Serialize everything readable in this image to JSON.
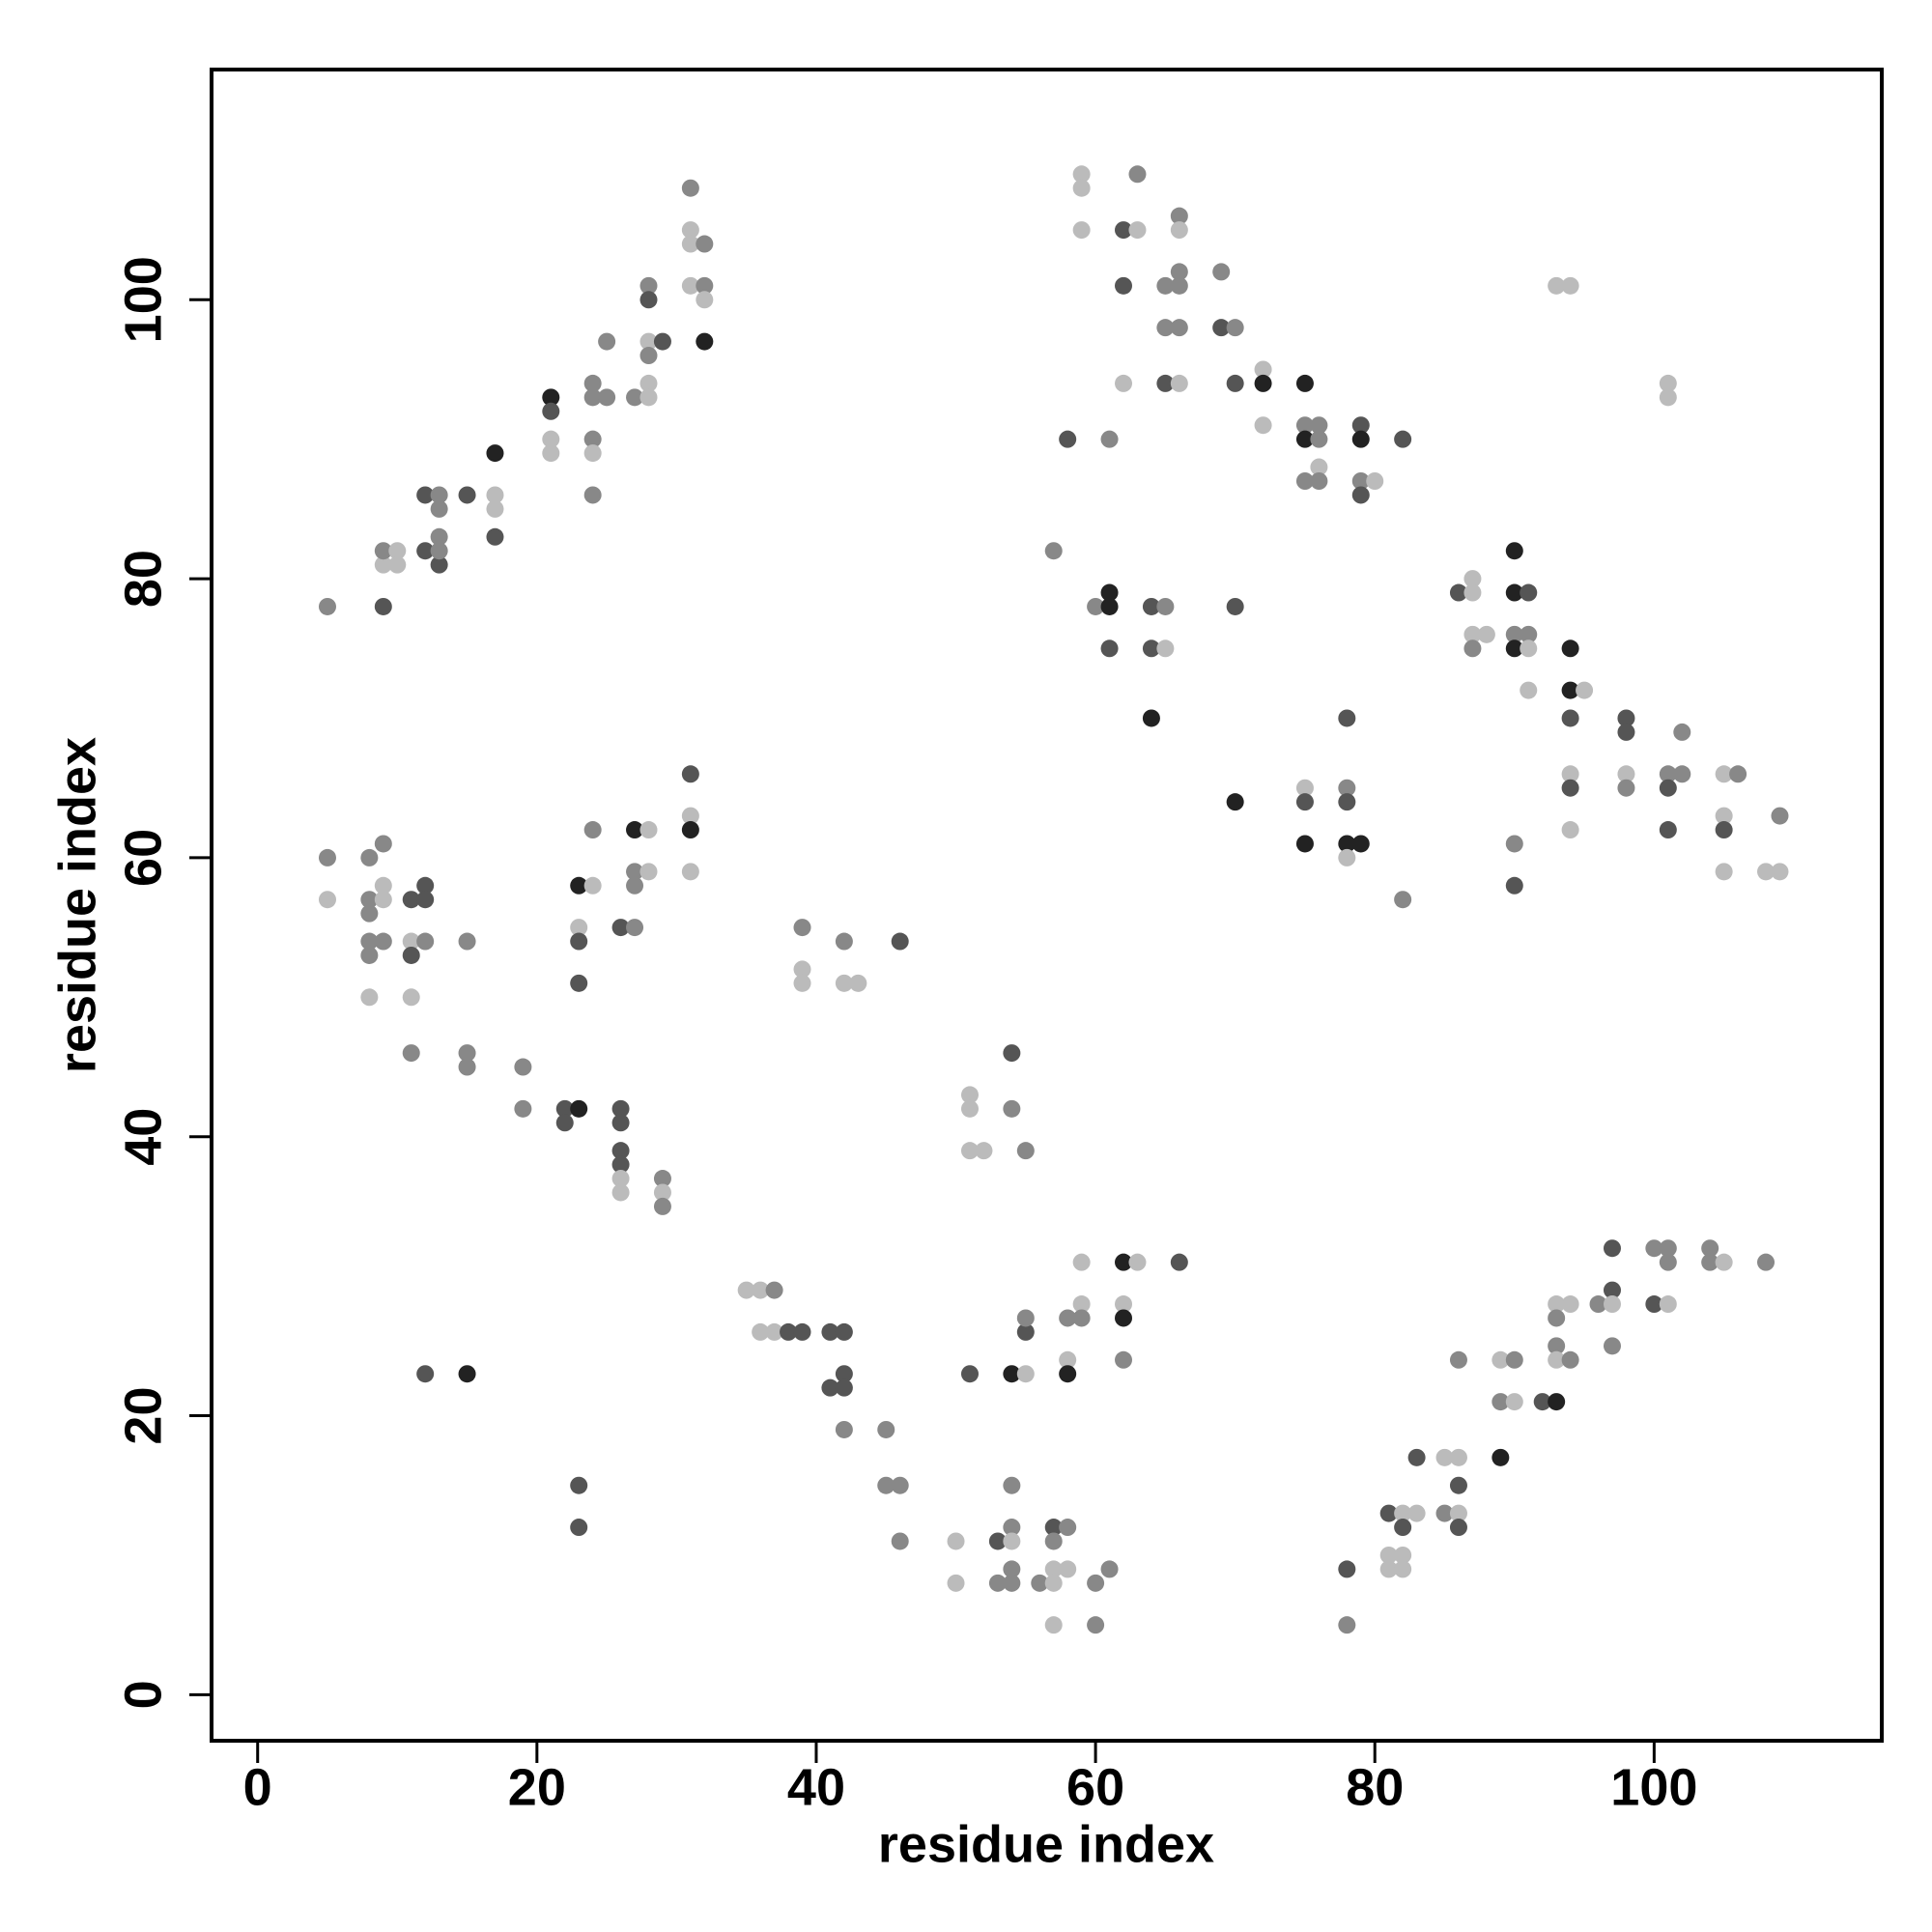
{
  "chart_data": {
    "type": "scatter",
    "x_label": "residue index",
    "y_label": "residue index",
    "xlim": [
      -3.3,
      116.3
    ],
    "ylim": [
      -3.3,
      116.5
    ],
    "xticks": [
      0,
      20,
      40,
      60,
      80,
      100
    ],
    "yticks": [
      0,
      20,
      40,
      60,
      80,
      100
    ],
    "x": [
      5,
      9,
      9,
      9,
      10,
      10,
      12,
      12,
      13,
      13,
      13,
      13,
      13,
      15,
      17,
      17,
      17,
      17,
      21,
      21,
      21,
      21,
      24,
      24,
      24,
      24,
      24,
      25,
      25,
      27,
      28,
      28,
      28,
      28,
      28,
      28,
      29,
      31,
      31,
      31,
      31,
      32,
      32,
      32,
      32,
      5,
      5,
      8,
      8,
      8,
      8,
      8,
      8,
      9,
      9,
      9,
      9,
      11,
      11,
      11,
      11,
      12,
      12,
      12,
      15,
      11,
      15,
      15,
      19,
      19,
      22,
      22,
      23,
      23,
      23,
      23,
      23,
      24,
      24,
      26,
      26,
      26,
      26,
      26,
      26,
      26,
      27,
      27,
      27,
      27,
      28,
      28,
      29,
      29,
      29,
      31,
      31,
      31,
      31,
      39,
      39,
      39,
      42,
      42,
      43,
      46,
      12,
      15,
      23,
      23,
      35,
      36,
      37,
      36,
      37,
      38,
      39,
      41,
      42,
      42,
      41,
      42,
      42,
      45,
      45,
      46,
      46,
      50,
      50,
      51,
      51,
      51,
      52,
      54,
      54,
      55,
      51,
      54,
      55,
      55,
      55,
      53,
      53,
      54,
      54,
      54,
      54,
      54,
      56,
      57,
      57,
      57,
      57,
      57,
      58,
      58,
      58,
      58,
      58,
      59,
      59,
      59,
      60,
      60,
      61,
      62,
      62,
      62,
      62,
      63,
      66,
      59,
      59,
      59,
      63,
      62,
      63,
      62,
      62,
      65,
      65,
      65,
      66,
      66,
      66,
      66,
      66,
      66,
      69,
      69,
      70,
      70,
      72,
      72,
      72,
      75,
      75,
      75,
      75,
      76,
      76,
      76,
      76,
      79,
      79,
      79,
      79,
      80,
      82,
      58,
      61,
      57,
      60,
      61,
      61,
      61,
      64,
      64,
      65,
      65,
      64,
      70,
      70,
      75,
      75,
      75,
      78,
      78,
      78,
      78,
      78,
      79,
      82,
      86,
      87,
      87,
      87,
      87,
      88,
      90,
      90,
      90,
      90,
      91,
      91,
      91,
      91,
      94,
      94,
      94,
      94,
      94,
      94,
      95,
      90,
      90,
      93,
      94,
      101,
      101,
      98,
      98,
      98,
      98,
      101,
      101,
      101,
      102,
      102,
      105,
      105,
      105,
      105,
      106,
      108,
      109,
      109,
      78,
      78,
      81,
      81,
      81,
      82,
      82,
      82,
      82,
      83,
      83,
      85,
      85,
      86,
      86,
      86,
      86,
      86,
      89,
      89,
      89,
      90,
      90,
      92,
      93,
      93,
      93,
      93,
      93,
      94,
      94,
      96,
      97,
      97,
      97,
      97,
      100,
      100,
      101,
      101,
      101,
      104,
      104,
      105,
      108
    ],
    "y": [
      78,
      78,
      81,
      82,
      82,
      81,
      86,
      82,
      81,
      82,
      83,
      85,
      86,
      86,
      89,
      86,
      85,
      83,
      93,
      92,
      90,
      89,
      94,
      93,
      90,
      89,
      86,
      97,
      93,
      93,
      101,
      100,
      97,
      96,
      94,
      93,
      97,
      108,
      105,
      104,
      101,
      104,
      101,
      100,
      97,
      60,
      57,
      60,
      57,
      56,
      54,
      53,
      50,
      61,
      58,
      57,
      54,
      57,
      54,
      53,
      50,
      58,
      57,
      54,
      54,
      46,
      46,
      45,
      45,
      42,
      42,
      41,
      42,
      58,
      55,
      54,
      51,
      62,
      58,
      55,
      42,
      41,
      39,
      38,
      37,
      36,
      62,
      59,
      58,
      55,
      62,
      59,
      37,
      36,
      35,
      66,
      63,
      62,
      59,
      55,
      52,
      51,
      54,
      51,
      51,
      54,
      23,
      23,
      15,
      12,
      29,
      29,
      29,
      26,
      26,
      26,
      26,
      26,
      26,
      23,
      22,
      22,
      19,
      19,
      15,
      15,
      11,
      11,
      8,
      43,
      42,
      39,
      39,
      46,
      42,
      39,
      23,
      23,
      26,
      27,
      23,
      11,
      8,
      15,
      12,
      11,
      9,
      8,
      8,
      12,
      11,
      9,
      8,
      5,
      12,
      9,
      27,
      24,
      23,
      31,
      28,
      27,
      8,
      5,
      9,
      31,
      28,
      27,
      24,
      31,
      31,
      109,
      108,
      105,
      109,
      105,
      105,
      101,
      94,
      101,
      98,
      94,
      106,
      105,
      102,
      101,
      98,
      94,
      102,
      98,
      98,
      94,
      95,
      94,
      91,
      94,
      91,
      90,
      87,
      91,
      90,
      88,
      87,
      91,
      90,
      87,
      86,
      87,
      90,
      90,
      90,
      82,
      78,
      79,
      78,
      75,
      78,
      75,
      78,
      75,
      70,
      78,
      64,
      65,
      64,
      61,
      70,
      65,
      64,
      61,
      60,
      61,
      57,
      79,
      80,
      79,
      76,
      75,
      76,
      82,
      79,
      76,
      75,
      79,
      76,
      75,
      72,
      75,
      72,
      70,
      66,
      65,
      62,
      72,
      61,
      58,
      101,
      101,
      94,
      93,
      70,
      69,
      66,
      65,
      66,
      65,
      62,
      69,
      66,
      66,
      63,
      62,
      59,
      66,
      59,
      63,
      59,
      9,
      5,
      13,
      10,
      9,
      13,
      12,
      10,
      9,
      17,
      13,
      17,
      13,
      24,
      17,
      15,
      13,
      12,
      24,
      21,
      17,
      24,
      21,
      21,
      21,
      28,
      27,
      25,
      24,
      28,
      24,
      28,
      32,
      29,
      28,
      25,
      32,
      28,
      32,
      31,
      28,
      32,
      31,
      31,
      31
    ],
    "colors": [
      "#888",
      "#555",
      "#bbb",
      "#888",
      "#bbb",
      "#bbb",
      "#555",
      "#555",
      "#555",
      "#888",
      "#888",
      "#888",
      "#888",
      "#555",
      "#222",
      "#bbb",
      "#bbb",
      "#555",
      "#222",
      "#555",
      "#bbb",
      "#bbb",
      "#888",
      "#888",
      "#888",
      "#bbb",
      "#888",
      "#888",
      "#888",
      "#888",
      "#888",
      "#555",
      "#bbb",
      "#888",
      "#bbb",
      "#bbb",
      "#555",
      "#888",
      "#bbb",
      "#bbb",
      "#bbb",
      "#888",
      "#888",
      "#bbb",
      "#222",
      "#888",
      "#bbb",
      "#888",
      "#888",
      "#888",
      "#888",
      "#888",
      "#bbb",
      "#888",
      "#bbb",
      "#bbb",
      "#888",
      "#555",
      "#bbb",
      "#555",
      "#bbb",
      "#555",
      "#555",
      "#888",
      "#888",
      "#888",
      "#888",
      "#888",
      "#888",
      "#888",
      "#555",
      "#555",
      "#222",
      "#222",
      "#bbb",
      "#555",
      "#555",
      "#888",
      "#bbb",
      "#555",
      "#555",
      "#555",
      "#555",
      "#555",
      "#bbb",
      "#bbb",
      "#222",
      "#888",
      "#888",
      "#888",
      "#bbb",
      "#bbb",
      "#888",
      "#bbb",
      "#888",
      "#555",
      "#bbb",
      "#222",
      "#bbb",
      "#888",
      "#bbb",
      "#bbb",
      "#888",
      "#bbb",
      "#bbb",
      "#555",
      "#555",
      "#222",
      "#555",
      "#555",
      "#bbb",
      "#bbb",
      "#888",
      "#bbb",
      "#bbb",
      "#555",
      "#555",
      "#555",
      "#555",
      "#555",
      "#555",
      "#555",
      "#888",
      "#888",
      "#888",
      "#888",
      "#888",
      "#bbb",
      "#bbb",
      "#bbb",
      "#bbb",
      "#bbb",
      "#bbb",
      "#555",
      "#888",
      "#888",
      "#555",
      "#222",
      "#555",
      "#888",
      "#bbb",
      "#555",
      "#888",
      "#888",
      "#888",
      "#bbb",
      "#888",
      "#888",
      "#888",
      "#555",
      "#888",
      "#bbb",
      "#bbb",
      "#bbb",
      "#888",
      "#bbb",
      "#888",
      "#bbb",
      "#222",
      "#bbb",
      "#bbb",
      "#888",
      "#888",
      "#888",
      "#888",
      "#222",
      "#bbb",
      "#222",
      "#888",
      "#bbb",
      "#555",
      "#bbb",
      "#bbb",
      "#bbb",
      "#888",
      "#555",
      "#bbb",
      "#555",
      "#bbb",
      "#888",
      "#888",
      "#555",
      "#888",
      "#bbb",
      "#888",
      "#888",
      "#888",
      "#bbb",
      "#888",
      "#555",
      "#888",
      "#555",
      "#bbb",
      "#222",
      "#bbb",
      "#222",
      "#888",
      "#222",
      "#888",
      "#888",
      "#888",
      "#bbb",
      "#888",
      "#555",
      "#222",
      "#888",
      "#555",
      "#bbb",
      "#555",
      "#555",
      "#888",
      "#888",
      "#888",
      "#222",
      "#222",
      "#555",
      "#555",
      "#555",
      "#888",
      "#bbb",
      "#222",
      "#555",
      "#222",
      "#bbb",
      "#555",
      "#222",
      "#555",
      "#888",
      "#555",
      "#222",
      "#bbb",
      "#222",
      "#888",
      "#555",
      "#bbb",
      "#bbb",
      "#bbb",
      "#888",
      "#bbb",
      "#222",
      "#222",
      "#888",
      "#222",
      "#555",
      "#888",
      "#bbb",
      "#bbb",
      "#222",
      "#222",
      "#555",
      "#bbb",
      "#555",
      "#bbb",
      "#bbb",
      "#888",
      "#555",
      "#bbb",
      "#bbb",
      "#bbb",
      "#bbb",
      "#555",
      "#555",
      "#bbb",
      "#888",
      "#888",
      "#555",
      "#555",
      "#888",
      "#888",
      "#bbb",
      "#bbb",
      "#555",
      "#bbb",
      "#888",
      "#bbb",
      "#888",
      "#bbb",
      "#555",
      "#888",
      "#555",
      "#bbb",
      "#bbb",
      "#bbb",
      "#555",
      "#bbb",
      "#bbb",
      "#555",
      "#bbb",
      "#bbb",
      "#888",
      "#888",
      "#bbb",
      "#555",
      "#bbb",
      "#555",
      "#bbb",
      "#888",
      "#222",
      "#888",
      "#bbb",
      "#555",
      "#222",
      "#bbb",
      "#888",
      "#888",
      "#bbb",
      "#bbb",
      "#888",
      "#888",
      "#555",
      "#555",
      "#bbb",
      "#888",
      "#888",
      "#555",
      "#888",
      "#888",
      "#bbb",
      "#888",
      "#888",
      "#bbb",
      "#888"
    ]
  }
}
